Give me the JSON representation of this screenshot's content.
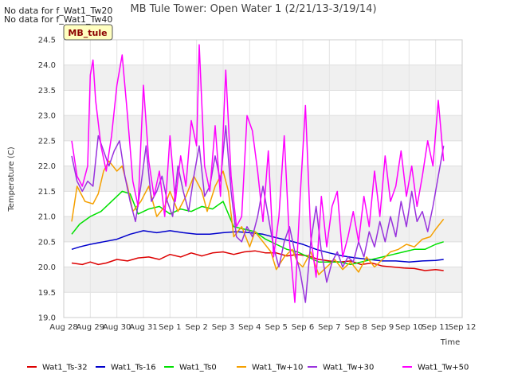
{
  "notes": [
    "No data for f_Wat1_Tw20",
    "No data for f_Wat1_Tw40"
  ],
  "site_label": "MB_tule",
  "chart_data": {
    "type": "line",
    "title": "MB Tule Tower: Open Water 1 (2/21/13-3/19/14)",
    "xlabel": "Time",
    "ylabel": "Temperature (C)",
    "x_ticks": [
      "Aug 28",
      "Aug 29",
      "Aug 30",
      "Aug 31",
      "Sep 1",
      "Sep 2",
      "Sep 3",
      "Sep 4",
      "Sep 5",
      "Sep 6",
      "Sep 7",
      "Sep 8",
      "Sep 9",
      "Sep 10",
      "Sep 11",
      "Sep 12"
    ],
    "xlim_days": [
      0,
      15
    ],
    "y_ticks": [
      "19.0",
      "19.5",
      "20.0",
      "20.5",
      "21.0",
      "21.5",
      "22.0",
      "22.5",
      "23.0",
      "23.5",
      "24.0",
      "24.5"
    ],
    "ylim": [
      19.0,
      24.5
    ],
    "grid": true,
    "legend_position": "bottom",
    "series": [
      {
        "name": "Wat1_Ts-32",
        "color": "#dd0000",
        "x": [
          0.3,
          0.7,
          1.0,
          1.3,
          1.6,
          2.0,
          2.4,
          2.8,
          3.2,
          3.6,
          4.0,
          4.4,
          4.8,
          5.2,
          5.6,
          6.0,
          6.4,
          6.8,
          7.2,
          7.6,
          8.0,
          8.4,
          8.8,
          9.2,
          9.6,
          10.0,
          10.4,
          10.8,
          11.2,
          11.6,
          12.0,
          12.4,
          12.8,
          13.2,
          13.6,
          14.0,
          14.3
        ],
        "y": [
          20.08,
          20.05,
          20.1,
          20.05,
          20.08,
          20.15,
          20.12,
          20.18,
          20.2,
          20.15,
          20.25,
          20.2,
          20.28,
          20.22,
          20.28,
          20.3,
          20.25,
          20.3,
          20.32,
          20.28,
          20.28,
          20.22,
          20.25,
          20.22,
          20.15,
          20.12,
          20.1,
          20.12,
          20.05,
          20.08,
          20.02,
          20.0,
          19.98,
          19.97,
          19.93,
          19.95,
          19.93
        ]
      },
      {
        "name": "Wat1_Ts-16",
        "color": "#0000cc",
        "x": [
          0.3,
          0.6,
          1.0,
          1.5,
          2.0,
          2.5,
          3.0,
          3.5,
          4.0,
          4.5,
          5.0,
          5.5,
          6.0,
          6.5,
          7.0,
          7.5,
          8.0,
          8.5,
          9.0,
          9.5,
          10.0,
          10.5,
          11.0,
          11.5,
          12.0,
          12.5,
          13.0,
          13.5,
          14.0,
          14.3
        ],
        "y": [
          20.35,
          20.4,
          20.45,
          20.5,
          20.55,
          20.65,
          20.72,
          20.68,
          20.72,
          20.68,
          20.65,
          20.65,
          20.68,
          20.7,
          20.68,
          20.65,
          20.58,
          20.52,
          20.45,
          20.35,
          20.28,
          20.22,
          20.18,
          20.15,
          20.12,
          20.12,
          20.1,
          20.12,
          20.13,
          20.15
        ]
      },
      {
        "name": "Wat1_Ts0",
        "color": "#00e000",
        "x": [
          0.3,
          0.6,
          1.0,
          1.4,
          1.8,
          2.2,
          2.5,
          2.8,
          3.2,
          3.6,
          4.0,
          4.4,
          4.8,
          5.2,
          5.6,
          6.0,
          6.4,
          6.8,
          7.2,
          7.6,
          8.0,
          8.4,
          8.8,
          9.2,
          9.6,
          10.0,
          10.4,
          10.8,
          11.2,
          11.6,
          12.0,
          12.4,
          12.8,
          13.2,
          13.6,
          14.0,
          14.3
        ],
        "y": [
          20.65,
          20.85,
          21.0,
          21.1,
          21.3,
          21.5,
          21.45,
          21.05,
          21.15,
          21.2,
          21.05,
          21.15,
          21.1,
          21.2,
          21.15,
          21.3,
          20.8,
          20.75,
          20.7,
          20.55,
          20.45,
          20.35,
          20.3,
          20.2,
          20.1,
          20.1,
          20.1,
          20.05,
          20.1,
          20.15,
          20.2,
          20.25,
          20.3,
          20.35,
          20.35,
          20.45,
          20.5
        ]
      },
      {
        "name": "Wat1_Tw+10",
        "color": "#f5a000",
        "x": [
          0.3,
          0.5,
          0.8,
          1.1,
          1.3,
          1.5,
          1.7,
          2.0,
          2.2,
          2.4,
          2.6,
          2.9,
          3.2,
          3.5,
          3.8,
          4.0,
          4.3,
          4.6,
          4.9,
          5.2,
          5.4,
          5.7,
          6.0,
          6.2,
          6.4,
          6.7,
          7.0,
          7.2,
          7.5,
          7.8,
          8.0,
          8.3,
          8.6,
          8.8,
          9.0,
          9.3,
          9.6,
          9.9,
          10.2,
          10.5,
          10.8,
          11.1,
          11.4,
          11.7,
          12.0,
          12.3,
          12.6,
          12.9,
          13.2,
          13.5,
          13.8,
          14.0,
          14.3
        ],
        "y": [
          20.9,
          21.6,
          21.3,
          21.25,
          21.45,
          21.9,
          22.1,
          21.9,
          22.0,
          21.6,
          21.1,
          21.3,
          21.6,
          21.0,
          21.2,
          21.5,
          21.1,
          21.4,
          21.8,
          21.5,
          21.1,
          21.6,
          21.9,
          21.5,
          20.6,
          20.8,
          20.4,
          20.7,
          20.5,
          20.3,
          19.95,
          20.2,
          20.35,
          20.1,
          20.0,
          20.3,
          19.85,
          20.0,
          20.15,
          19.95,
          20.1,
          19.9,
          20.2,
          20.0,
          20.15,
          20.3,
          20.35,
          20.45,
          20.4,
          20.55,
          20.6,
          20.75,
          20.95
        ]
      },
      {
        "name": "Wat1_Tw+30",
        "color": "#9933dd",
        "x": [
          0.3,
          0.5,
          0.7,
          0.9,
          1.1,
          1.3,
          1.5,
          1.7,
          1.9,
          2.1,
          2.3,
          2.5,
          2.7,
          2.9,
          3.1,
          3.3,
          3.5,
          3.7,
          3.9,
          4.1,
          4.3,
          4.5,
          4.7,
          4.9,
          5.1,
          5.3,
          5.5,
          5.7,
          5.9,
          6.1,
          6.3,
          6.5,
          6.7,
          6.9,
          7.1,
          7.3,
          7.5,
          7.7,
          7.9,
          8.1,
          8.3,
          8.5,
          8.7,
          8.9,
          9.1,
          9.3,
          9.5,
          9.7,
          9.9,
          10.1,
          10.3,
          10.5,
          10.7,
          10.9,
          11.1,
          11.3,
          11.5,
          11.7,
          11.9,
          12.1,
          12.3,
          12.5,
          12.7,
          12.9,
          13.1,
          13.3,
          13.5,
          13.7,
          13.9,
          14.1,
          14.3
        ],
        "y": [
          22.2,
          21.7,
          21.5,
          21.7,
          21.6,
          22.6,
          22.3,
          22.0,
          22.3,
          22.5,
          21.8,
          21.3,
          20.9,
          21.6,
          22.4,
          21.3,
          21.5,
          21.8,
          21.3,
          21.0,
          22.0,
          21.5,
          21.1,
          21.8,
          22.4,
          21.4,
          21.6,
          22.2,
          21.7,
          22.8,
          21.5,
          20.6,
          20.5,
          20.8,
          20.6,
          21.0,
          21.6,
          21.0,
          20.4,
          20.0,
          20.5,
          20.8,
          20.3,
          19.9,
          19.3,
          20.5,
          21.2,
          20.3,
          19.7,
          20.1,
          20.3,
          20.0,
          20.2,
          20.1,
          20.5,
          20.2,
          20.7,
          20.4,
          20.9,
          20.5,
          21.0,
          20.6,
          21.3,
          20.8,
          21.5,
          20.9,
          21.1,
          20.7,
          21.2,
          21.8,
          22.4
        ]
      },
      {
        "name": "Wat1_Tw+50",
        "color": "#ff00ff",
        "x": [
          0.3,
          0.5,
          0.7,
          0.9,
          1.0,
          1.1,
          1.2,
          1.4,
          1.6,
          1.8,
          2.0,
          2.2,
          2.4,
          2.6,
          2.8,
          3.0,
          3.2,
          3.4,
          3.6,
          3.8,
          4.0,
          4.2,
          4.4,
          4.6,
          4.8,
          5.0,
          5.1,
          5.3,
          5.5,
          5.7,
          5.9,
          6.1,
          6.3,
          6.5,
          6.7,
          6.9,
          7.1,
          7.3,
          7.5,
          7.7,
          7.9,
          8.1,
          8.3,
          8.5,
          8.7,
          8.9,
          9.1,
          9.3,
          9.5,
          9.7,
          9.9,
          10.1,
          10.3,
          10.5,
          10.7,
          10.9,
          11.1,
          11.3,
          11.5,
          11.7,
          11.9,
          12.1,
          12.3,
          12.5,
          12.7,
          12.9,
          13.1,
          13.3,
          13.5,
          13.7,
          13.9,
          14.1,
          14.3
        ],
        "y": [
          22.5,
          21.8,
          21.6,
          22.0,
          23.8,
          24.1,
          23.3,
          22.4,
          21.9,
          22.6,
          23.6,
          24.2,
          23.0,
          21.7,
          21.2,
          23.6,
          22.1,
          21.4,
          21.9,
          21.0,
          22.6,
          21.3,
          22.2,
          21.6,
          22.9,
          22.4,
          24.4,
          22.0,
          21.5,
          22.8,
          21.4,
          23.9,
          21.8,
          20.8,
          21.0,
          23.0,
          22.7,
          21.9,
          20.9,
          22.3,
          20.2,
          21.0,
          22.6,
          20.5,
          19.3,
          21.4,
          23.2,
          20.6,
          19.8,
          21.4,
          20.4,
          21.2,
          21.5,
          20.2,
          20.6,
          21.1,
          20.5,
          21.4,
          20.8,
          21.9,
          21.0,
          22.2,
          21.3,
          21.6,
          22.3,
          21.4,
          22.0,
          21.2,
          21.8,
          22.5,
          22.0,
          23.3,
          22.1
        ]
      }
    ]
  }
}
